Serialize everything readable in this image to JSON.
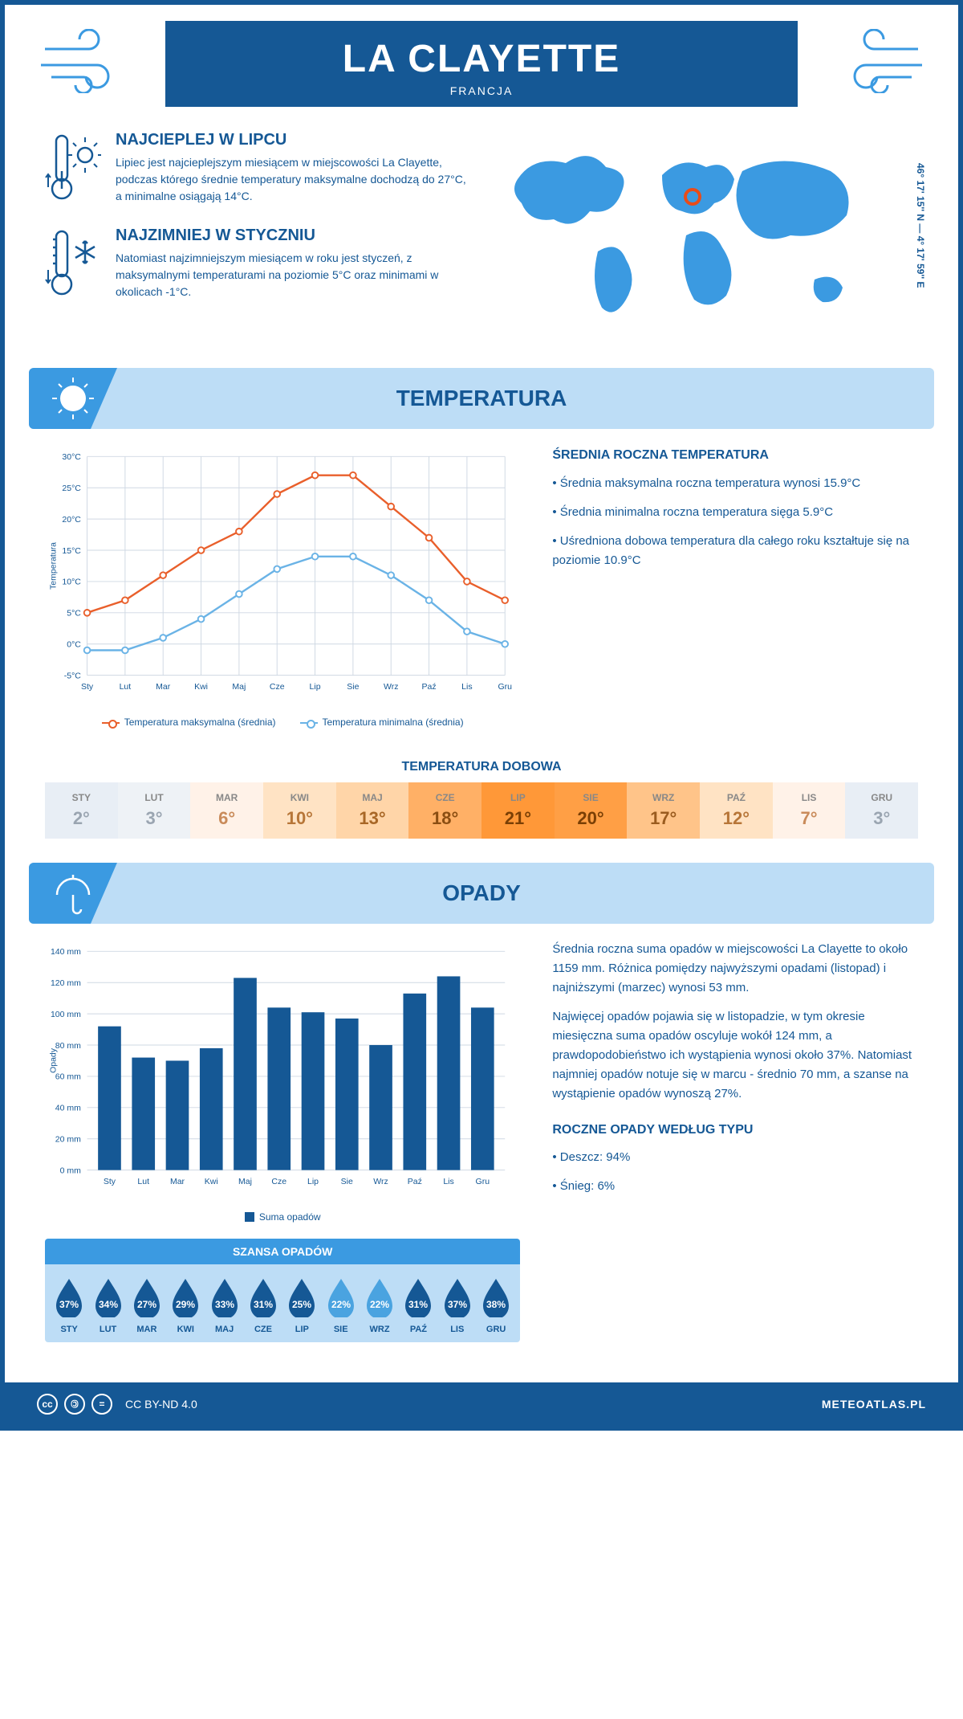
{
  "header": {
    "city": "LA CLAYETTE",
    "country": "FRANCJA"
  },
  "coords": "46° 17' 15'' N — 4° 17' 59'' E",
  "facts": {
    "hot": {
      "title": "NAJCIEPLEJ W LIPCU",
      "text": "Lipiec jest najcieplejszym miesiącem w miejscowości La Clayette, podczas którego średnie temperatury maksymalne dochodzą do 27°C, a minimalne osiągają 14°C."
    },
    "cold": {
      "title": "NAJZIMNIEJ W STYCZNIU",
      "text": "Natomiast najzimniejszym miesiącem w roku jest styczeń, z maksymalnymi temperaturami na poziomie 5°C oraz minimami w okolicach -1°C."
    }
  },
  "sections": {
    "temp": "TEMPERATURA",
    "precip": "OPADY"
  },
  "months": [
    "Sty",
    "Lut",
    "Mar",
    "Kwi",
    "Maj",
    "Cze",
    "Lip",
    "Sie",
    "Wrz",
    "Paź",
    "Lis",
    "Gru"
  ],
  "months_upper": [
    "STY",
    "LUT",
    "MAR",
    "KWI",
    "MAJ",
    "CZE",
    "LIP",
    "SIE",
    "WRZ",
    "PAŹ",
    "LIS",
    "GRU"
  ],
  "temp_chart": {
    "type": "line",
    "ylabel": "Temperatura",
    "ylim": [
      -5,
      30
    ],
    "ytick_step": 5,
    "max_series": [
      5,
      7,
      11,
      15,
      18,
      24,
      27,
      27,
      22,
      17,
      10,
      7
    ],
    "min_series": [
      -1,
      -1,
      1,
      4,
      8,
      12,
      14,
      14,
      11,
      7,
      2,
      0
    ],
    "max_color": "#e95f2b",
    "min_color": "#6ab3e6",
    "grid_color": "#cfd8e3",
    "background": "#ffffff",
    "legend_max": "Temperatura maksymalna (średnia)",
    "legend_min": "Temperatura minimalna (średnia)"
  },
  "temp_side": {
    "title": "ŚREDNIA ROCZNA TEMPERATURA",
    "bullets": [
      "• Średnia maksymalna roczna temperatura wynosi 15.9°C",
      "• Średnia minimalna roczna temperatura sięga 5.9°C",
      "• Uśredniona dobowa temperatura dla całego roku kształtuje się na poziomie 10.9°C"
    ]
  },
  "daily": {
    "title": "TEMPERATURA DOBOWA",
    "values": [
      "2°",
      "3°",
      "6°",
      "10°",
      "13°",
      "18°",
      "21°",
      "20°",
      "17°",
      "12°",
      "7°",
      "3°"
    ],
    "cell_bg": [
      "#e8eef5",
      "#eef2f6",
      "#fff2e8",
      "#ffe3c4",
      "#ffd5a8",
      "#ffb066",
      "#ff9838",
      "#ff9f45",
      "#ffc489",
      "#ffe3c4",
      "#fff2e8",
      "#e8eef5"
    ],
    "cell_fg": [
      "#9aa5b1",
      "#9aa5b1",
      "#c98b5a",
      "#b77638",
      "#a86726",
      "#8a4e12",
      "#7a3f05",
      "#7a3f05",
      "#9a5c1f",
      "#b77638",
      "#c98b5a",
      "#9aa5b1"
    ]
  },
  "precip_chart": {
    "type": "bar",
    "ylabel": "Opady",
    "values": [
      92,
      72,
      70,
      78,
      123,
      104,
      101,
      97,
      80,
      113,
      124,
      104
    ],
    "ylim": [
      0,
      140
    ],
    "ytick_step": 20,
    "bar_color": "#155895",
    "grid_color": "#cfd8e3",
    "legend": "Suma opadów"
  },
  "precip_side": {
    "p1": "Średnia roczna suma opadów w miejscowości La Clayette to około 1159 mm. Różnica pomiędzy najwyższymi opadami (listopad) i najniższymi (marzec) wynosi 53 mm.",
    "p2": "Najwięcej opadów pojawia się w listopadzie, w tym okresie miesięczna suma opadów oscyluje wokół 124 mm, a prawdopodobieństwo ich wystąpienia wynosi około 37%. Natomiast najmniej opadów notuje się w marcu - średnio 70 mm, a szanse na wystąpienie opadów wynoszą 27%.",
    "type_title": "ROCZNE OPADY WEDŁUG TYPU",
    "type_bullets": [
      "• Deszcz: 94%",
      "• Śnieg: 6%"
    ]
  },
  "chance": {
    "title": "SZANSA OPADÓW",
    "values": [
      37,
      34,
      27,
      29,
      33,
      31,
      25,
      22,
      22,
      31,
      37,
      38
    ],
    "drop_dark": "#155895",
    "drop_light": "#4aa3e0"
  },
  "footer": {
    "license": "CC BY-ND 4.0",
    "brand": "METEOATLAS.PL"
  }
}
